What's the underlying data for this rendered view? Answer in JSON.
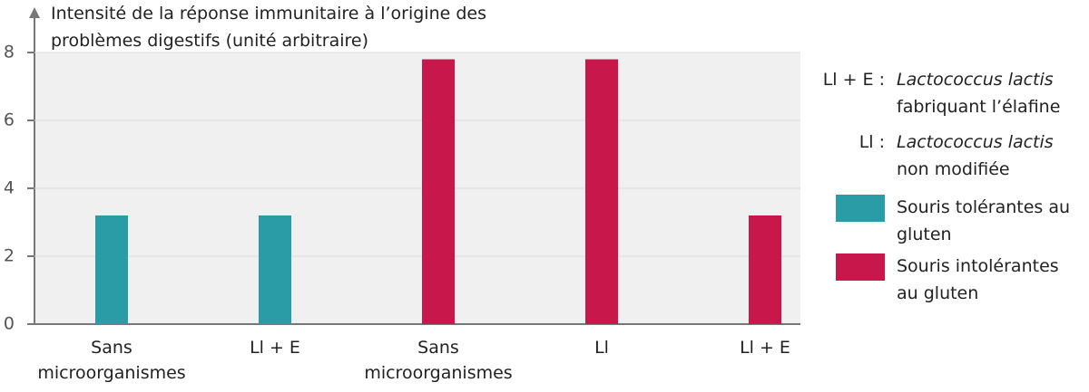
{
  "chart_data": {
    "type": "bar",
    "y_label": "Intensité de la réponse immunitaire à l’origine des problèmes digestifs (unité arbitraire)",
    "categories": [
      "Sans microorganismes",
      "Ll + E",
      "Sans microorganismes",
      "Ll",
      "Ll + E"
    ],
    "series": [
      {
        "name": "Souris tolérantes au gluten",
        "color": "#2a9ca6",
        "values": [
          3.2,
          3.2,
          null,
          null,
          null
        ]
      },
      {
        "name": "Souris intolérantes au gluten",
        "color": "#c8184b",
        "values": [
          null,
          null,
          7.8,
          7.8,
          3.2
        ]
      }
    ],
    "ylim": [
      0,
      8
    ],
    "yticks": [
      0,
      2,
      4,
      6,
      8
    ],
    "grid": true,
    "notes": [
      {
        "key": "Ll + E :",
        "term": "Lactococcus lactis",
        "text": "fabriquant l’élafine"
      },
      {
        "key": "Ll :",
        "term": "Lactococcus lactis",
        "text": "non modifiée"
      }
    ]
  }
}
